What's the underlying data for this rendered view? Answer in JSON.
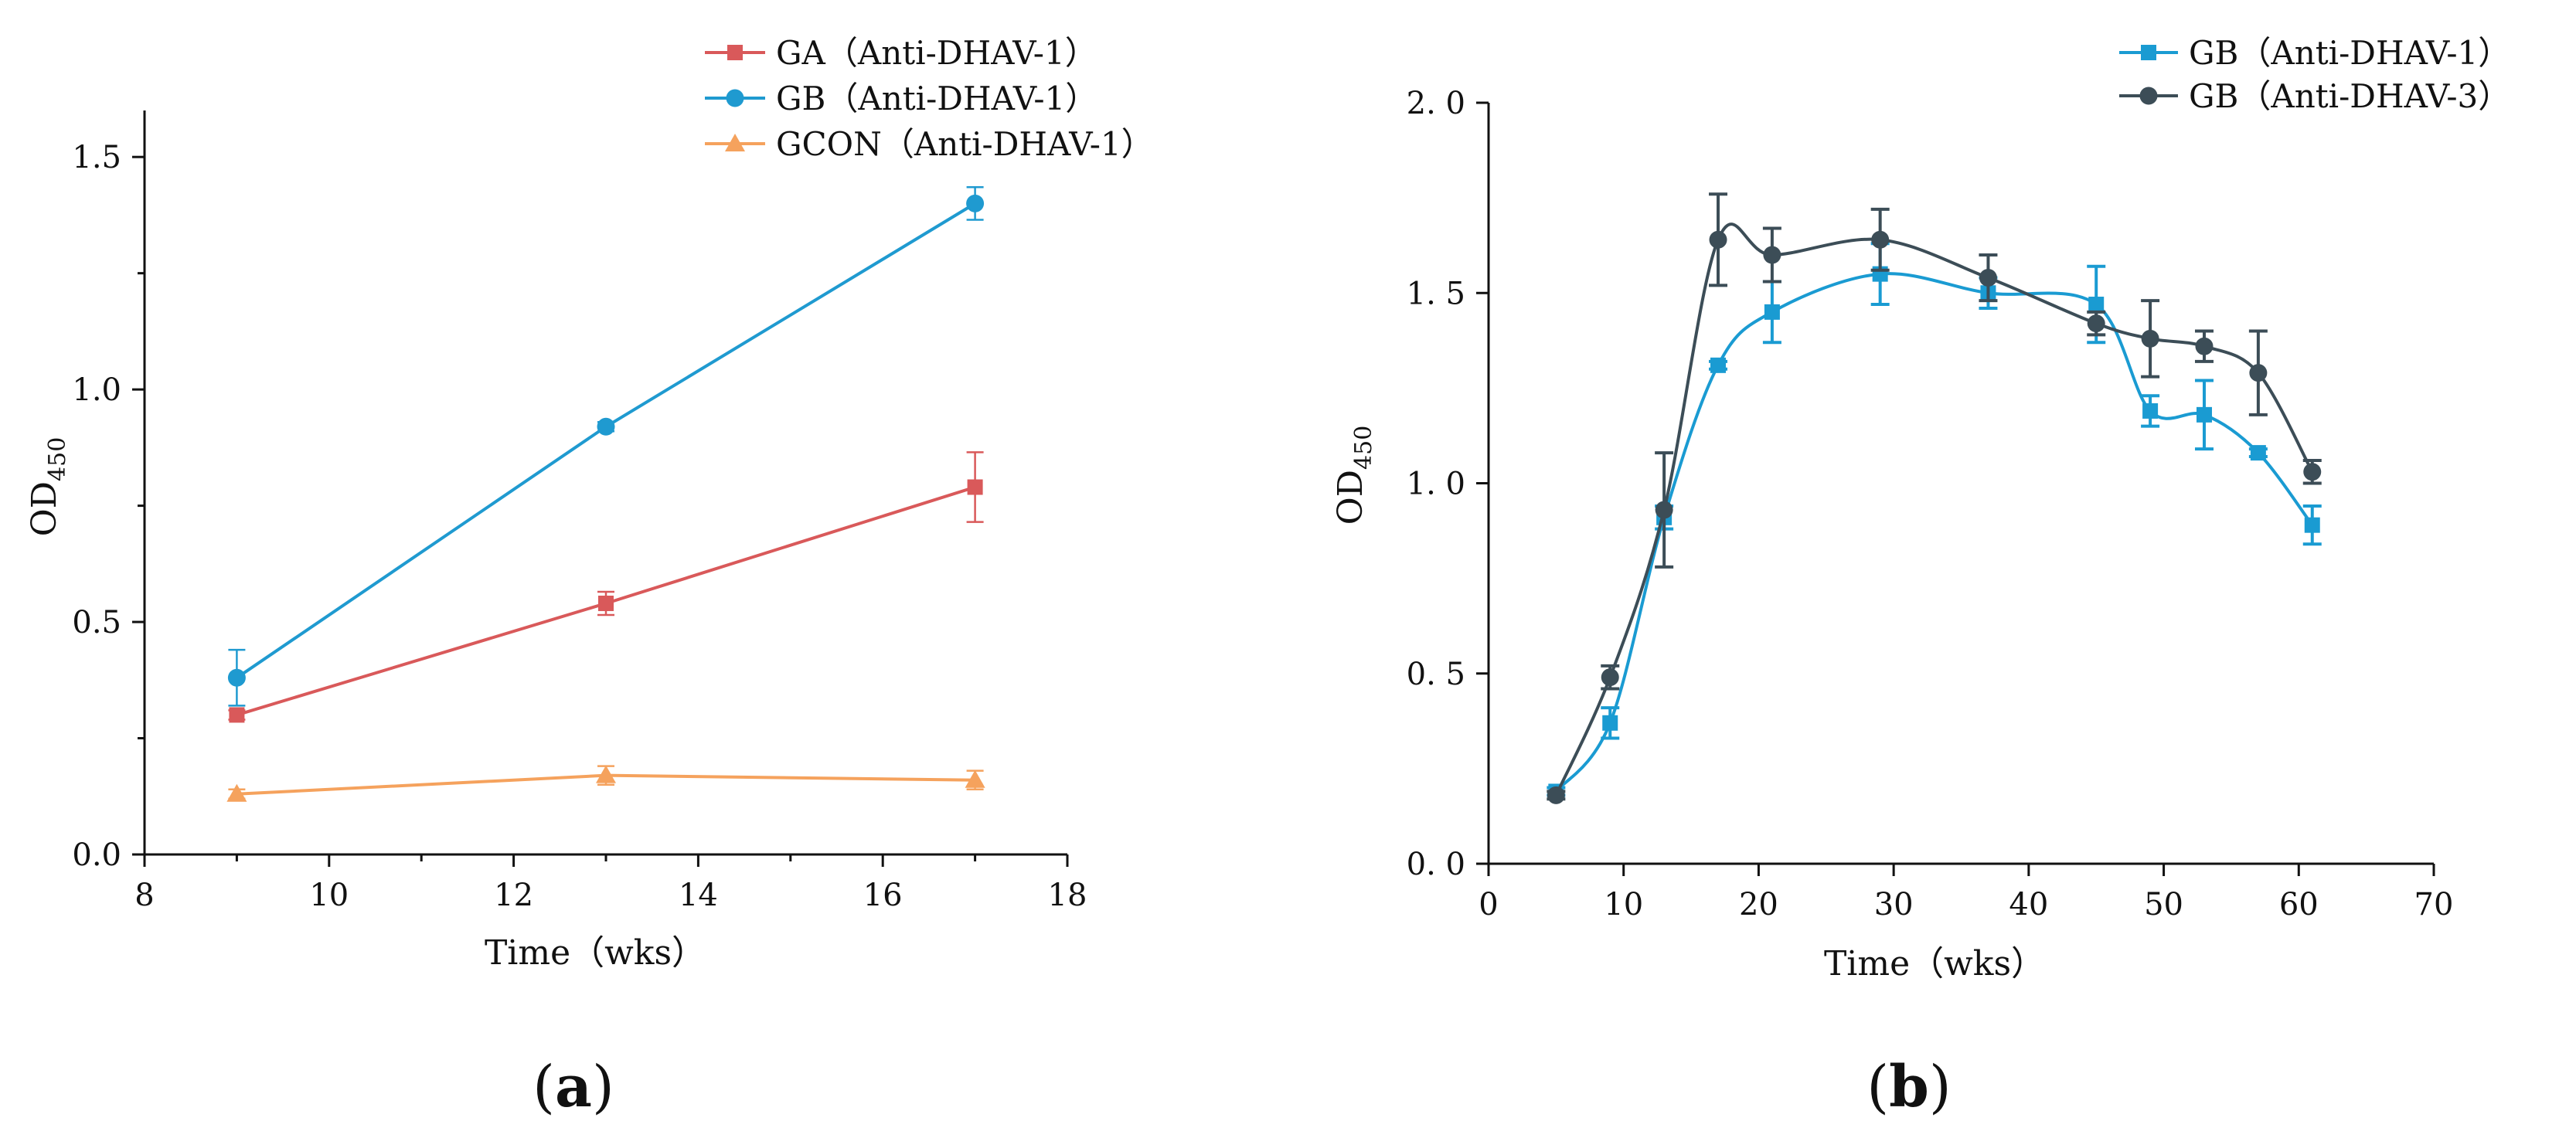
{
  "chart_data": [
    {
      "type": "line",
      "panel_label": "(a)",
      "xlabel": "Time（wks）",
      "ylabel": "OD",
      "ylabel_subscript": "450",
      "xlim": [
        8,
        18
      ],
      "ylim": [
        0.0,
        1.6
      ],
      "xticks": [
        8,
        10,
        12,
        14,
        16,
        18
      ],
      "xtick_labels": [
        "8",
        "10",
        "12",
        "14",
        "16",
        "18"
      ],
      "yticks": [
        0.0,
        0.5,
        1.0,
        1.5
      ],
      "ytick_labels": [
        "0.0",
        "0.5",
        "1.0",
        "1.5"
      ],
      "grid": false,
      "legend_position": "top-right",
      "smooth": false,
      "series": [
        {
          "name": "GA（Anti-DHAV-1）",
          "color": "#d9595a",
          "marker": "square",
          "x": [
            9,
            13,
            17
          ],
          "y": [
            0.3,
            0.54,
            0.79
          ],
          "error": [
            0.01,
            0.025,
            0.075
          ]
        },
        {
          "name": "GB（Anti-DHAV-1）",
          "color": "#1f9ad0",
          "marker": "circle",
          "x": [
            9,
            13,
            17
          ],
          "y": [
            0.38,
            0.92,
            1.4
          ],
          "error": [
            0.06,
            0.01,
            0.035
          ]
        },
        {
          "name": "GCON（Anti-DHAV-1）",
          "color": "#f5a25d",
          "marker": "triangle",
          "x": [
            9,
            13,
            17
          ],
          "y": [
            0.13,
            0.17,
            0.16
          ],
          "error": [
            0.01,
            0.02,
            0.02
          ]
        }
      ]
    },
    {
      "type": "line",
      "panel_label": "(b)",
      "xlabel": "Time（wks）",
      "ylabel": "OD",
      "ylabel_subscript": "450",
      "xlim": [
        0,
        70
      ],
      "ylim": [
        0.0,
        2.0
      ],
      "xticks": [
        0,
        10,
        20,
        30,
        40,
        50,
        60,
        70
      ],
      "xtick_labels": [
        "0",
        "10",
        "20",
        "30",
        "40",
        "50",
        "60",
        "70"
      ],
      "yticks": [
        0.0,
        0.5,
        1.0,
        1.5,
        2.0
      ],
      "ytick_labels": [
        "0. 0",
        "0. 5",
        "1. 0",
        "1. 5",
        "2. 0"
      ],
      "grid": false,
      "legend_position": "top-right",
      "smooth": true,
      "series": [
        {
          "name": "GB（Anti-DHAV-1）",
          "color": "#1a9bd2",
          "marker": "square",
          "x": [
            5,
            9,
            13,
            17,
            21,
            29,
            37,
            45,
            49,
            53,
            57,
            61
          ],
          "y": [
            0.19,
            0.37,
            0.91,
            1.31,
            1.45,
            1.55,
            1.5,
            1.47,
            1.19,
            1.18,
            1.08,
            0.89
          ],
          "error": [
            0.01,
            0.04,
            0.03,
            0.01,
            0.08,
            0.08,
            0.04,
            0.1,
            0.04,
            0.09,
            0.01,
            0.05
          ]
        },
        {
          "name": "GB（Anti-DHAV-3）",
          "color": "#3c4d57",
          "marker": "circle",
          "x": [
            5,
            9,
            13,
            17,
            21,
            29,
            37,
            45,
            49,
            53,
            57,
            61
          ],
          "y": [
            0.18,
            0.49,
            0.93,
            1.64,
            1.6,
            1.64,
            1.54,
            1.42,
            1.38,
            1.36,
            1.29,
            1.03
          ],
          "error": [
            0.01,
            0.03,
            0.15,
            0.12,
            0.07,
            0.08,
            0.06,
            0.03,
            0.1,
            0.04,
            0.11,
            0.03
          ]
        }
      ]
    }
  ]
}
